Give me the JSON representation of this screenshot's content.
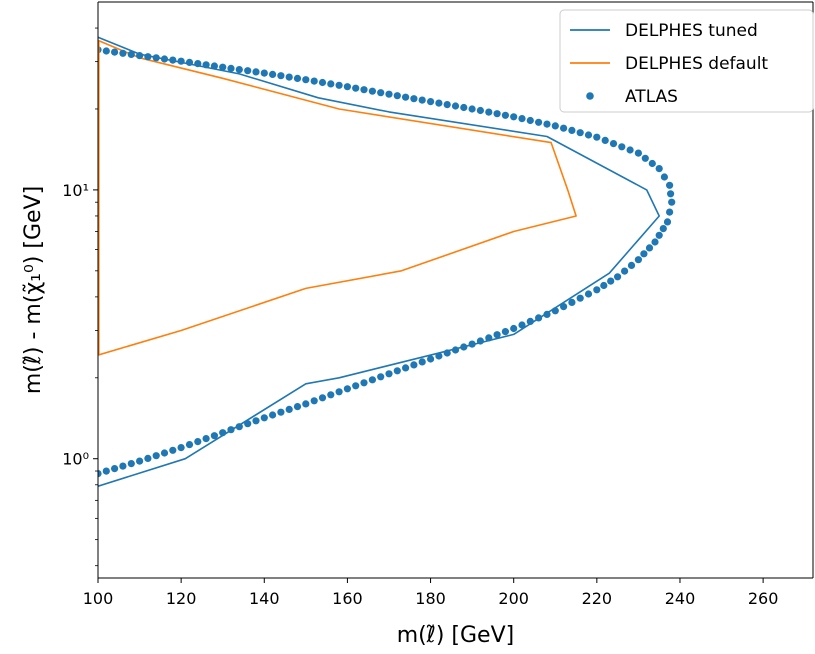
{
  "chart_data": {
    "type": "line",
    "xlabel": "m(ℓ̃) [GeV]",
    "ylabel": "m(ℓ̃) - m(χ̃₁⁰) [GeV]",
    "xlim": [
      100,
      272
    ],
    "ylim": [
      0.36,
      50
    ],
    "y_scale": "log",
    "grid": false,
    "legend_position": "top-right",
    "x_ticks": [
      100,
      120,
      140,
      160,
      180,
      200,
      220,
      240,
      260
    ],
    "x_tick_labels": [
      "100",
      "120",
      "140",
      "160",
      "180",
      "200",
      "220",
      "240",
      "260"
    ],
    "y_ticks": [
      1,
      10
    ],
    "y_tick_labels": [
      "10⁰",
      "10¹"
    ],
    "series": [
      {
        "name": "DELPHES tuned",
        "kind": "line",
        "color": "#1f77b4",
        "x": [
          100,
          121,
          150,
          158,
          200,
          223,
          235,
          232,
          208,
          170,
          153,
          134,
          110,
          100
        ],
        "y": [
          0.79,
          1.0,
          1.9,
          2.0,
          2.9,
          4.9,
          8.0,
          10.0,
          15.8,
          19.5,
          22.0,
          27.0,
          32.0,
          37.0
        ]
      },
      {
        "name": "DELPHES default",
        "kind": "line",
        "color": "#ff7f0e",
        "x": [
          100,
          120,
          150,
          173,
          200,
          215,
          213,
          209,
          158,
          130,
          110,
          100
        ],
        "y": [
          2.43,
          3.0,
          4.3,
          5.0,
          7.0,
          8.0,
          10.0,
          15.0,
          20.0,
          26.0,
          31.0,
          36.0
        ],
        "dash_bottom_y": 0.36
      },
      {
        "name": "ATLAS",
        "kind": "scatter",
        "color": "#1f77b4",
        "x": [
          100,
          110,
          120,
          130,
          140,
          150,
          160,
          170,
          180,
          190,
          200,
          210,
          220,
          225,
          230,
          234,
          237,
          238,
          237.5,
          235,
          230,
          220,
          210,
          200,
          190,
          180,
          170,
          160,
          150,
          140,
          130,
          120,
          110,
          100
        ],
        "y": [
          0.88,
          0.98,
          1.1,
          1.25,
          1.42,
          1.6,
          1.82,
          2.07,
          2.35,
          2.67,
          3.05,
          3.55,
          4.25,
          4.75,
          5.5,
          6.4,
          7.6,
          9.0,
          10.4,
          12.0,
          13.7,
          15.7,
          17.3,
          18.7,
          20.0,
          21.3,
          22.7,
          24.2,
          25.7,
          27.2,
          28.6,
          30.1,
          31.6,
          33.2
        ]
      }
    ]
  }
}
